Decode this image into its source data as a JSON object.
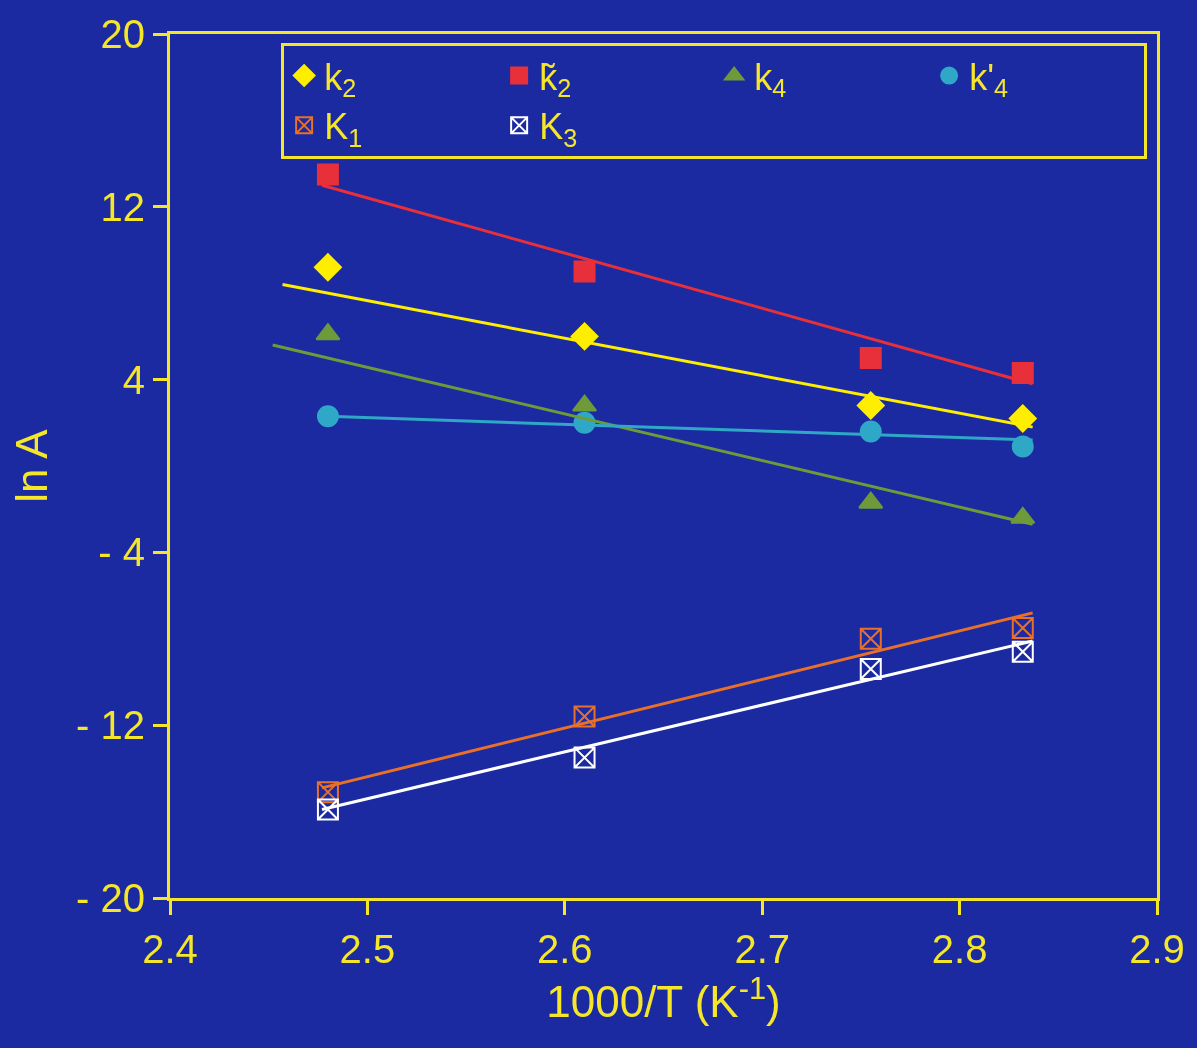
{
  "chart_data": {
    "type": "scatter",
    "xlabel": "1000/T (K$^{-1}$)",
    "ylabel": "ln A",
    "x": [
      2.48,
      2.61,
      2.755,
      2.832
    ],
    "series": [
      {
        "name": "k$_{2}$",
        "color": "#ffee00",
        "marker": "diamond",
        "values": [
          9.2,
          6.0,
          2.8,
          2.2
        ]
      },
      {
        "name": "k̃$_{2}$",
        "color": "#e8303a",
        "marker": "square",
        "values": [
          13.5,
          9.0,
          5.0,
          4.3
        ]
      },
      {
        "name": "k$_{4}$",
        "color": "#6e9a3a",
        "marker": "triangle",
        "values": [
          6.1,
          2.8,
          -1.7,
          -2.4
        ]
      },
      {
        "name": "k'$_{4}$",
        "color": "#2fa8c8",
        "marker": "circle",
        "values": [
          2.3,
          2.0,
          1.6,
          0.9
        ]
      },
      {
        "name": "K$_{1}$",
        "color": "#e8702a",
        "marker": "cross",
        "values": [
          -15.1,
          -11.6,
          -8.0,
          -7.5
        ]
      },
      {
        "name": "K$_{3}$",
        "color": "#ffffff",
        "marker": "cross",
        "values": [
          -15.9,
          -13.5,
          -9.4,
          -8.6
        ]
      },
      {
        "type": "line",
        "color": "#e8303a",
        "x": [
          2.477,
          2.837
        ],
        "values": [
          13.0,
          3.8
        ]
      },
      {
        "type": "line",
        "color": "#ffee00",
        "x": [
          2.457,
          2.837
        ],
        "values": [
          8.4,
          1.8
        ]
      },
      {
        "type": "line",
        "color": "#6e9a3a",
        "x": [
          2.452,
          2.837
        ],
        "values": [
          5.6,
          -2.7
        ]
      },
      {
        "type": "line",
        "color": "#2fa8c8",
        "x": [
          2.48,
          2.837
        ],
        "values": [
          2.3,
          1.2
        ]
      },
      {
        "type": "line",
        "color": "#e8702a",
        "x": [
          2.477,
          2.837
        ],
        "values": [
          -14.9,
          -6.8
        ]
      },
      {
        "type": "line",
        "color": "#ffffff",
        "x": [
          2.477,
          2.837
        ],
        "values": [
          -15.9,
          -8.1
        ]
      }
    ],
    "xlim": [
      2.4,
      2.9
    ],
    "xticks": [
      2.4,
      2.5,
      2.6,
      2.7,
      2.8,
      2.9
    ],
    "ylim": [
      -20,
      20
    ],
    "yticks": [
      {
        "value": -20,
        "label": "- 20"
      },
      {
        "value": -12,
        "label": "- 12"
      },
      {
        "value": -4,
        "label": "- 4"
      },
      4,
      12,
      20
    ],
    "grid": false,
    "legend": "top right"
  }
}
